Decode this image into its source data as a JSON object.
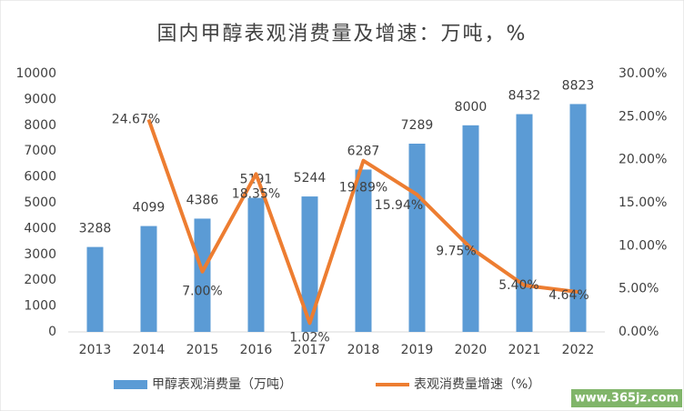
{
  "chart_data": {
    "type": "bar_line",
    "title": "国内甲醇表观消费量及增速：万吨，%",
    "categories": [
      "2013",
      "2014",
      "2015",
      "2016",
      "2017",
      "2018",
      "2019",
      "2020",
      "2021",
      "2022"
    ],
    "series": [
      {
        "name": "甲醇表观消费量（万吨）",
        "color": "#5b9bd5",
        "type": "bar",
        "values": [
          3288,
          4099,
          4386,
          5191,
          5244,
          6287,
          7289,
          8000,
          8432,
          8823
        ]
      },
      {
        "name": "表观消费量增速（%）",
        "color": "#ed7d31",
        "type": "line",
        "axis": "y2",
        "values": [
          null,
          24.67,
          7.0,
          18.35,
          1.02,
          19.89,
          15.94,
          9.75,
          5.4,
          4.64
        ],
        "value_labels": [
          null,
          "24.67%",
          "7.00%",
          "18.35%",
          "1.02%",
          "19.89%",
          "15.94%",
          "9.75%",
          "5.40%",
          "4.64%"
        ]
      }
    ],
    "ylim": [
      0,
      10000
    ],
    "yticks": [
      0,
      1000,
      2000,
      3000,
      4000,
      5000,
      6000,
      7000,
      8000,
      9000,
      10000
    ],
    "y2lim": [
      0,
      30
    ],
    "y2ticks": [
      {
        "value": 0,
        "label": "0.00%"
      },
      {
        "value": 5,
        "label": "5.00%"
      },
      {
        "value": 10,
        "label": "10.00%"
      },
      {
        "value": 15,
        "label": "15.00%"
      },
      {
        "value": 20,
        "label": "20.00%"
      },
      {
        "value": 25,
        "label": "25.00%"
      },
      {
        "value": 30,
        "label": "30.00%"
      }
    ],
    "grid": false,
    "legend": "bottom",
    "watermark": "www.365jz.com"
  }
}
